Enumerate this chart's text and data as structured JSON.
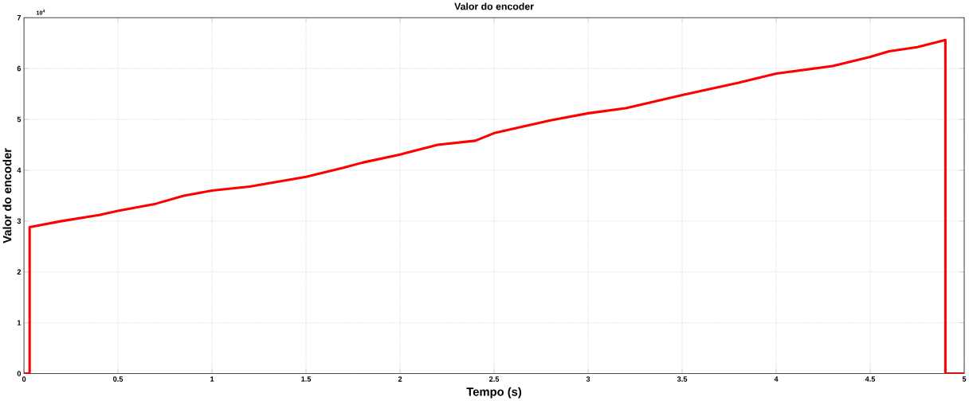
{
  "chart_data": {
    "type": "line",
    "title": "Valor do encoder",
    "xlabel": "Tempo (s)",
    "ylabel": "Valor do encoder",
    "annotations": [
      "10$^{4}$"
    ],
    "series": [
      {
        "color": "#ff0000",
        "x": [
          0,
          0.03,
          0.03,
          0.2,
          0.4,
          0.5,
          0.7,
          0.85,
          1.0,
          1.2,
          1.5,
          1.7,
          1.8,
          2.0,
          2.2,
          2.4,
          2.5,
          2.8,
          3.0,
          3.2,
          3.5,
          3.8,
          4.0,
          4.3,
          4.5,
          4.6,
          4.75,
          4.9,
          4.9,
          5.0
        ],
        "values": [
          0,
          0,
          2.88,
          3.0,
          3.12,
          3.2,
          3.34,
          3.5,
          3.6,
          3.68,
          3.87,
          4.05,
          4.15,
          4.31,
          4.5,
          4.58,
          4.73,
          4.98,
          5.12,
          5.22,
          5.48,
          5.72,
          5.9,
          6.05,
          6.23,
          6.34,
          6.42,
          6.56,
          0,
          0
        ]
      }
    ],
    "xlim": [
      0,
      5
    ],
    "ylim": [
      0,
      7
    ],
    "xticks": [
      0,
      0.5,
      1,
      1.5,
      2,
      2.5,
      3,
      3.5,
      4,
      4.5,
      5
    ],
    "yticks": [
      0,
      1,
      2,
      3,
      4,
      5,
      6,
      7
    ],
    "grid": true,
    "line_style": "solid",
    "marker": "none"
  }
}
